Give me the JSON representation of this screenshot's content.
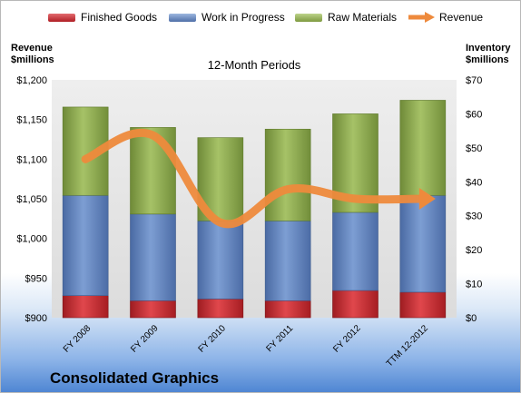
{
  "legend": {
    "items": [
      {
        "label": "Finished Goods",
        "color": "#c0272d"
      },
      {
        "label": "Work in Progress",
        "color": "#5b7fb8"
      },
      {
        "label": "Raw Materials",
        "color": "#8fab4f"
      },
      {
        "label": "Revenue",
        "color": "#ee8a3c"
      }
    ]
  },
  "left_axis_title": [
    "Revenue",
    "$millions"
  ],
  "right_axis_title": [
    "Inventory",
    "$millions"
  ],
  "company_name": "Consolidated Graphics",
  "chart_data": {
    "type": "bar",
    "title": "12-Month Periods",
    "categories": [
      "FY 2008",
      "FY 2009",
      "FY 2010",
      "FY 2011",
      "FY 2012",
      "TTM 12-2012"
    ],
    "stacked": true,
    "series": [
      {
        "name": "Finished Goods",
        "axis": "right",
        "color": "#c0272d",
        "values": [
          6.5,
          5,
          5.5,
          5,
          8,
          7.5
        ]
      },
      {
        "name": "Work in Progress",
        "axis": "right",
        "color": "#5b7fb8",
        "values": [
          29.5,
          25.5,
          23,
          23.5,
          23,
          28.5
        ]
      },
      {
        "name": "Raw Materials",
        "axis": "right",
        "color": "#8fab4f",
        "values": [
          26,
          25.5,
          24.5,
          27,
          29,
          28
        ]
      },
      {
        "name": "Revenue",
        "type": "line",
        "axis": "left",
        "color": "#ee8a3c",
        "values": [
          1100,
          1130,
          1020,
          1062,
          1050,
          1050
        ]
      }
    ],
    "y_left": {
      "min": 900,
      "max": 1200,
      "ticks": [
        "$900",
        "$950",
        "$1,000",
        "$1,050",
        "$1,100",
        "$1,150",
        "$1,200"
      ]
    },
    "y_right": {
      "min": 0,
      "max": 70,
      "ticks": [
        "$0",
        "$10",
        "$20",
        "$30",
        "$40",
        "$50",
        "$60",
        "$70"
      ]
    },
    "grid": false,
    "legend_position": "top"
  }
}
